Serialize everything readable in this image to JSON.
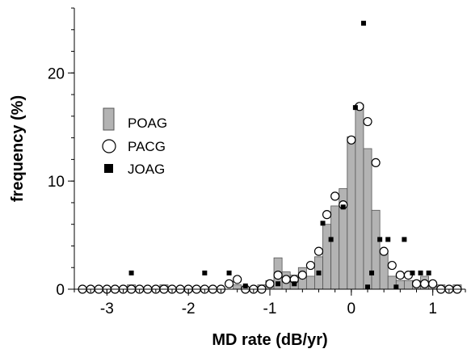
{
  "chart_data": {
    "type": "bar",
    "title": "",
    "xlabel": "MD rate (dB/yr)",
    "ylabel": "frequency (%)",
    "xlim": [
      -3.4,
      1.4
    ],
    "ylim": [
      0,
      26
    ],
    "x_ticks": [
      {
        "value": -3,
        "label": "-3"
      },
      {
        "value": -2,
        "label": "-2"
      },
      {
        "value": -1,
        "label": "-1"
      },
      {
        "value": 0,
        "label": "0"
      },
      {
        "value": 1,
        "label": "1"
      }
    ],
    "y_ticks": [
      {
        "value": 0,
        "label": "0"
      },
      {
        "value": 10,
        "label": "10"
      },
      {
        "value": 20,
        "label": "20"
      }
    ],
    "x_minor_step": 0.2,
    "y_minor_step": 2,
    "grid": false,
    "legend_position": "left",
    "bin_width": 0.1,
    "series": [
      {
        "name": "POAG",
        "kind": "bar",
        "color": "#b3b3b3",
        "points": [
          {
            "x": -2.7,
            "y": 0.4
          },
          {
            "x": -2.3,
            "y": 0.4
          },
          {
            "x": -1.4,
            "y": 0.4
          },
          {
            "x": -1.1,
            "y": 0.4
          },
          {
            "x": -1.0,
            "y": 0.8
          },
          {
            "x": -0.9,
            "y": 2.9
          },
          {
            "x": -0.8,
            "y": 1.6
          },
          {
            "x": -0.7,
            "y": 1.3
          },
          {
            "x": -0.6,
            "y": 2.0
          },
          {
            "x": -0.5,
            "y": 1.2
          },
          {
            "x": -0.4,
            "y": 3.0
          },
          {
            "x": -0.3,
            "y": 6.0
          },
          {
            "x": -0.2,
            "y": 7.7
          },
          {
            "x": -0.1,
            "y": 9.3
          },
          {
            "x": 0.0,
            "y": 14.1
          },
          {
            "x": 0.1,
            "y": 17.1
          },
          {
            "x": 0.2,
            "y": 13.0
          },
          {
            "x": 0.3,
            "y": 7.3
          },
          {
            "x": 0.4,
            "y": 3.5
          },
          {
            "x": 0.5,
            "y": 1.2
          },
          {
            "x": 0.6,
            "y": 0.8
          },
          {
            "x": 0.7,
            "y": 0.8
          },
          {
            "x": 0.8,
            "y": 0.8
          },
          {
            "x": 0.9,
            "y": 1.2
          },
          {
            "x": 1.0,
            "y": 0.4
          },
          {
            "x": 1.1,
            "y": 0.4
          },
          {
            "x": 1.3,
            "y": 0.4
          }
        ]
      },
      {
        "name": "PACG",
        "kind": "open-circle",
        "color": "#000000",
        "points": [
          {
            "x": -3.3,
            "y": 0
          },
          {
            "x": -3.2,
            "y": 0
          },
          {
            "x": -3.1,
            "y": 0
          },
          {
            "x": -3.0,
            "y": 0
          },
          {
            "x": -2.9,
            "y": 0
          },
          {
            "x": -2.8,
            "y": 0
          },
          {
            "x": -2.7,
            "y": 0
          },
          {
            "x": -2.6,
            "y": 0
          },
          {
            "x": -2.5,
            "y": 0
          },
          {
            "x": -2.4,
            "y": 0
          },
          {
            "x": -2.3,
            "y": 0
          },
          {
            "x": -2.2,
            "y": 0
          },
          {
            "x": -2.1,
            "y": 0
          },
          {
            "x": -2.0,
            "y": 0
          },
          {
            "x": -1.9,
            "y": 0
          },
          {
            "x": -1.8,
            "y": 0
          },
          {
            "x": -1.7,
            "y": 0
          },
          {
            "x": -1.6,
            "y": 0
          },
          {
            "x": -1.5,
            "y": 0.5
          },
          {
            "x": -1.4,
            "y": 0.9
          },
          {
            "x": -1.3,
            "y": 0
          },
          {
            "x": -1.2,
            "y": 0
          },
          {
            "x": -1.1,
            "y": 0
          },
          {
            "x": -1.0,
            "y": 0.5
          },
          {
            "x": -0.9,
            "y": 1.3
          },
          {
            "x": -0.8,
            "y": 0.9
          },
          {
            "x": -0.7,
            "y": 0.9
          },
          {
            "x": -0.6,
            "y": 1.3
          },
          {
            "x": -0.5,
            "y": 2.2
          },
          {
            "x": -0.4,
            "y": 3.5
          },
          {
            "x": -0.3,
            "y": 6.9
          },
          {
            "x": -0.2,
            "y": 8.6
          },
          {
            "x": -0.1,
            "y": 7.8
          },
          {
            "x": 0.0,
            "y": 13.8
          },
          {
            "x": 0.1,
            "y": 16.9
          },
          {
            "x": 0.2,
            "y": 15.5
          },
          {
            "x": 0.3,
            "y": 11.7
          },
          {
            "x": 0.4,
            "y": 3.5
          },
          {
            "x": 0.5,
            "y": 2.2
          },
          {
            "x": 0.6,
            "y": 1.3
          },
          {
            "x": 0.7,
            "y": 1.3
          },
          {
            "x": 0.8,
            "y": 0.5
          },
          {
            "x": 0.9,
            "y": 0.5
          },
          {
            "x": 1.0,
            "y": 0.5
          },
          {
            "x": 1.1,
            "y": 0
          },
          {
            "x": 1.2,
            "y": 0
          },
          {
            "x": 1.3,
            "y": 0
          }
        ]
      },
      {
        "name": "JOAG",
        "kind": "filled-square",
        "color": "#000000",
        "points": [
          {
            "x": -2.7,
            "y": 1.5
          },
          {
            "x": -1.8,
            "y": 1.5
          },
          {
            "x": -1.5,
            "y": 1.5
          },
          {
            "x": -1.3,
            "y": 0.3
          },
          {
            "x": -0.9,
            "y": 0.5
          },
          {
            "x": -0.7,
            "y": 0.5
          },
          {
            "x": -0.4,
            "y": 1.5
          },
          {
            "x": -0.35,
            "y": 6.1
          },
          {
            "x": -0.25,
            "y": 4.6
          },
          {
            "x": -0.1,
            "y": 7.6
          },
          {
            "x": 0.05,
            "y": 16.8
          },
          {
            "x": 0.15,
            "y": 24.6
          },
          {
            "x": 0.25,
            "y": 1.5
          },
          {
            "x": 0.35,
            "y": 4.6
          },
          {
            "x": 0.45,
            "y": 4.6
          },
          {
            "x": 0.65,
            "y": 4.6
          },
          {
            "x": 0.75,
            "y": 1.5
          },
          {
            "x": 0.85,
            "y": 1.5
          },
          {
            "x": 0.95,
            "y": 1.5
          },
          {
            "x": 0.55,
            "y": 0.2
          },
          {
            "x": 0.2,
            "y": 0.2
          }
        ]
      }
    ]
  }
}
